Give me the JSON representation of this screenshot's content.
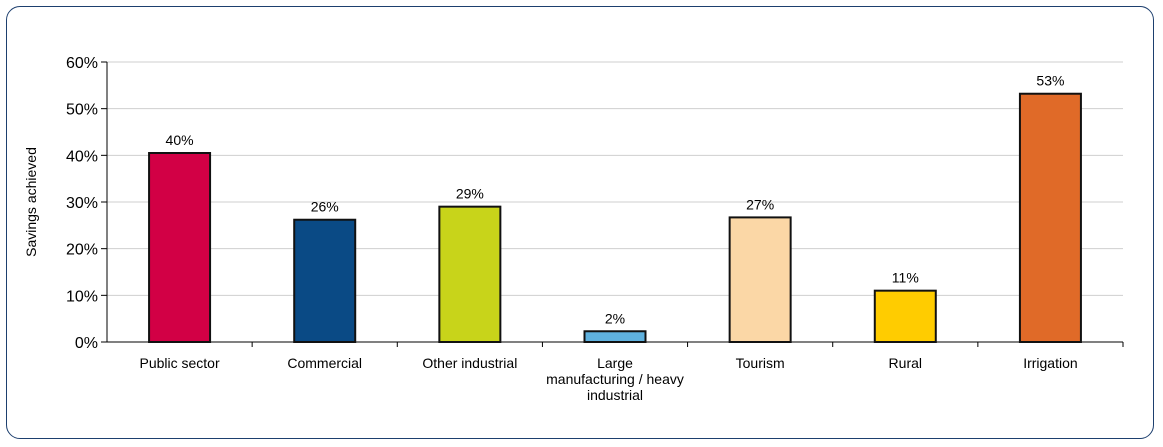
{
  "chart_data": {
    "type": "bar",
    "ylabel": "Savings achieved",
    "xlabel": "",
    "title": "",
    "ylim": [
      0,
      60
    ],
    "yticks": [
      "0%",
      "10%",
      "20%",
      "30%",
      "40%",
      "50%",
      "60%"
    ],
    "grid": true,
    "categories": [
      [
        "Public sector"
      ],
      [
        "Commercial"
      ],
      [
        "Other industrial"
      ],
      [
        "Large",
        "manufacturing / heavy",
        "industrial"
      ],
      [
        "Tourism"
      ],
      [
        "Rural"
      ],
      [
        "Irrigation"
      ]
    ],
    "values": [
      40.5,
      26.2,
      29.0,
      2.3,
      26.7,
      11.0,
      53.2
    ],
    "data_labels": [
      "40%",
      "26%",
      "29%",
      "2%",
      "27%",
      "11%",
      "53%"
    ],
    "colors": [
      "#d20045",
      "#0a4a85",
      "#c8d41a",
      "#5fb1de",
      "#fbd7a6",
      "#ffcc00",
      "#e06a28"
    ]
  },
  "frame_color": "#1d3f6e"
}
